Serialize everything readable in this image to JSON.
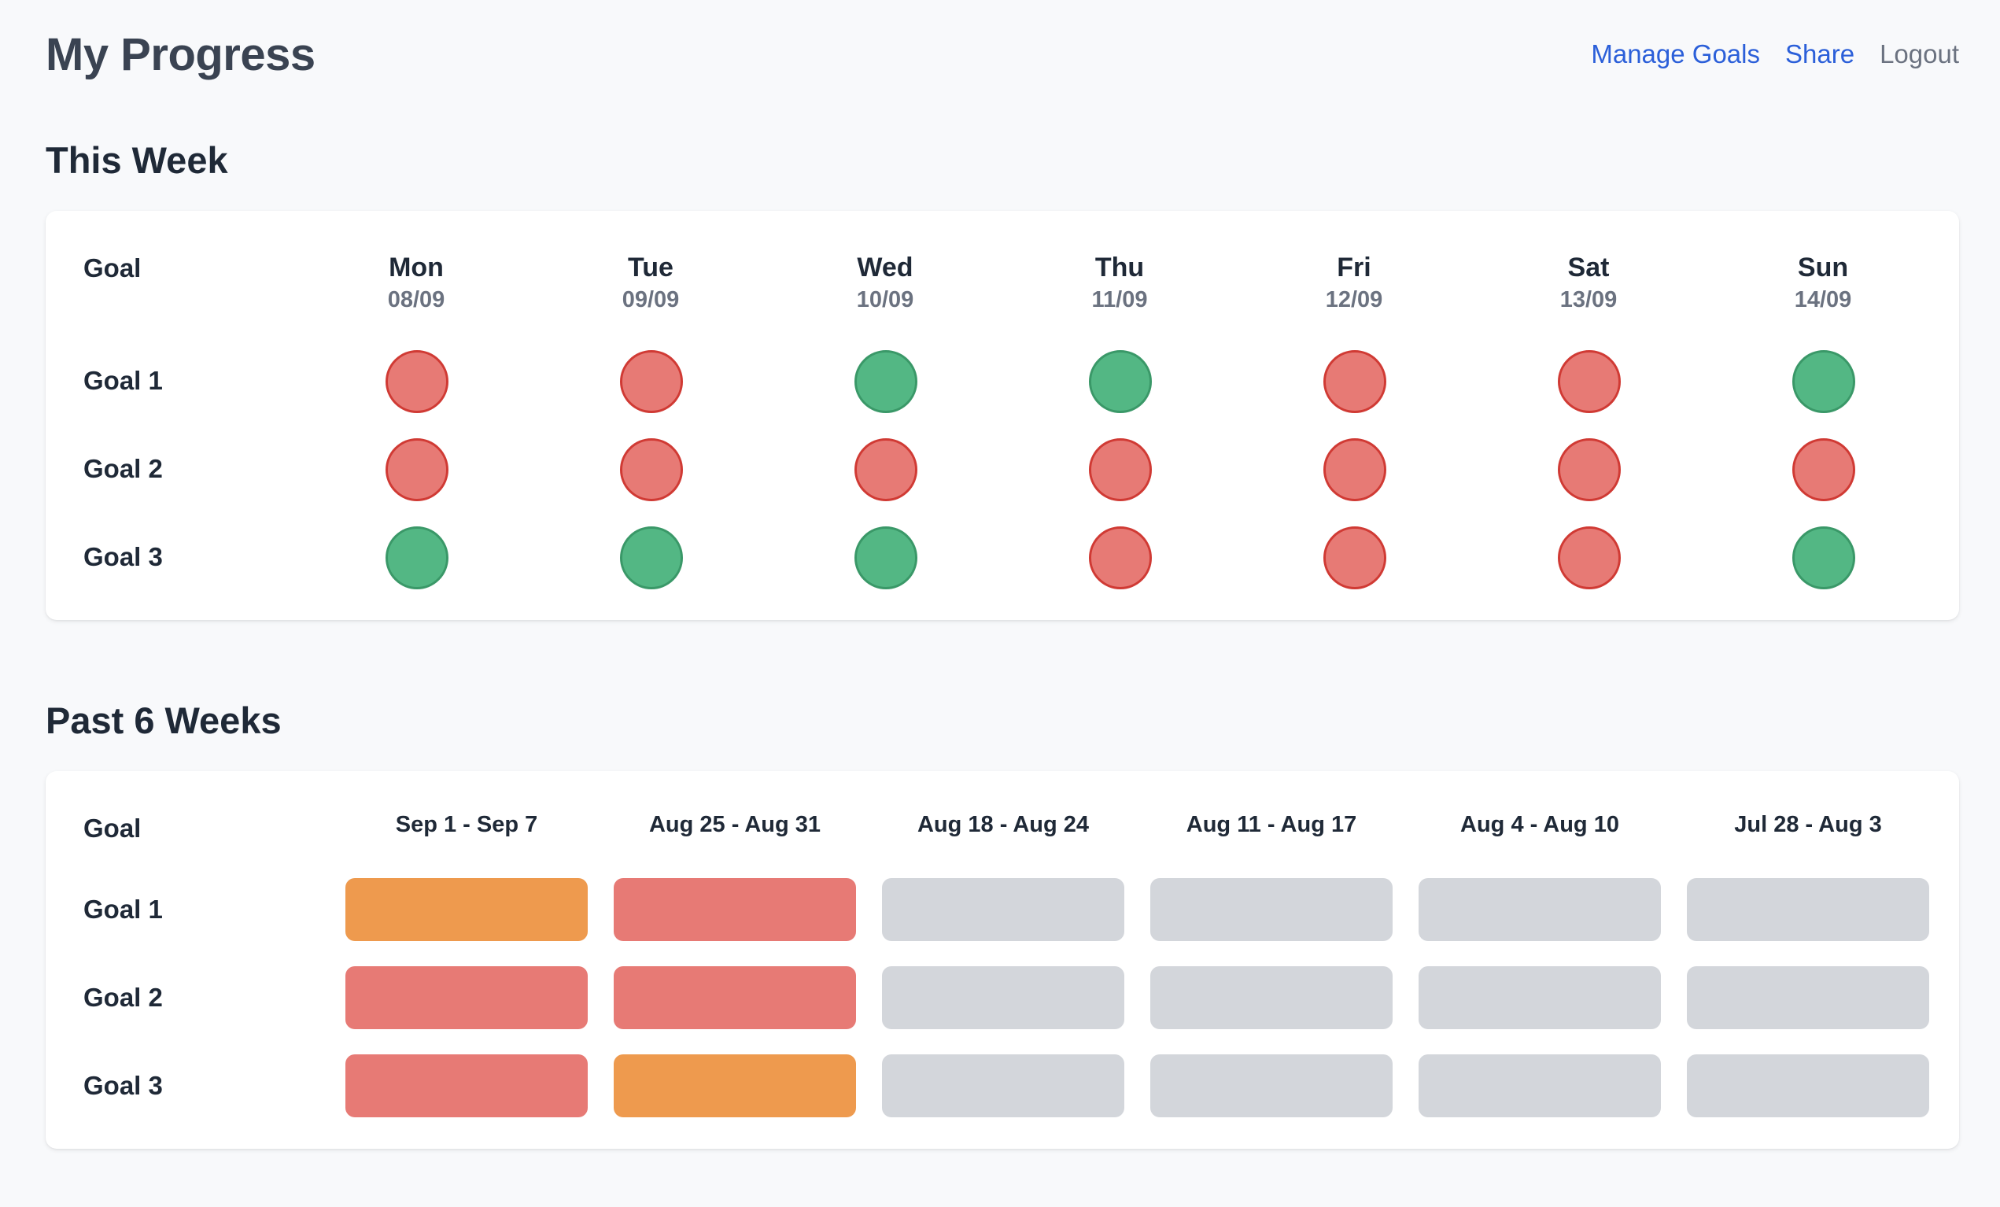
{
  "header": {
    "title": "My Progress",
    "nav": {
      "manage_goals": "Manage Goals",
      "share": "Share",
      "logout": "Logout"
    }
  },
  "colors": {
    "done": "#53b784",
    "missed": "#e77a75",
    "partial": "#ee9a4e",
    "none": "#d3d6db",
    "link": "#2b5fd9"
  },
  "this_week": {
    "title": "This Week",
    "goal_header": "Goal",
    "days": [
      {
        "name": "Mon",
        "date": "08/09"
      },
      {
        "name": "Tue",
        "date": "09/09"
      },
      {
        "name": "Wed",
        "date": "10/09"
      },
      {
        "name": "Thu",
        "date": "11/09"
      },
      {
        "name": "Fri",
        "date": "12/09"
      },
      {
        "name": "Sat",
        "date": "13/09"
      },
      {
        "name": "Sun",
        "date": "14/09"
      }
    ],
    "goals": [
      {
        "label": "Goal 1",
        "status": [
          "missed",
          "missed",
          "done",
          "done",
          "missed",
          "missed",
          "done"
        ]
      },
      {
        "label": "Goal 2",
        "status": [
          "missed",
          "missed",
          "missed",
          "missed",
          "missed",
          "missed",
          "missed"
        ]
      },
      {
        "label": "Goal 3",
        "status": [
          "done",
          "done",
          "done",
          "missed",
          "missed",
          "missed",
          "done"
        ]
      }
    ]
  },
  "past_weeks": {
    "title": "Past 6 Weeks",
    "goal_header": "Goal",
    "weeks": [
      "Sep 1 - Sep 7",
      "Aug 25 - Aug 31",
      "Aug 18 - Aug 24",
      "Aug 11 - Aug 17",
      "Aug 4 - Aug 10",
      "Jul 28 - Aug 3"
    ],
    "goals": [
      {
        "label": "Goal 1",
        "status": [
          "partial",
          "missed",
          "none",
          "none",
          "none",
          "none"
        ]
      },
      {
        "label": "Goal 2",
        "status": [
          "missed",
          "missed",
          "none",
          "none",
          "none",
          "none"
        ]
      },
      {
        "label": "Goal 3",
        "status": [
          "missed",
          "partial",
          "none",
          "none",
          "none",
          "none"
        ]
      }
    ]
  }
}
